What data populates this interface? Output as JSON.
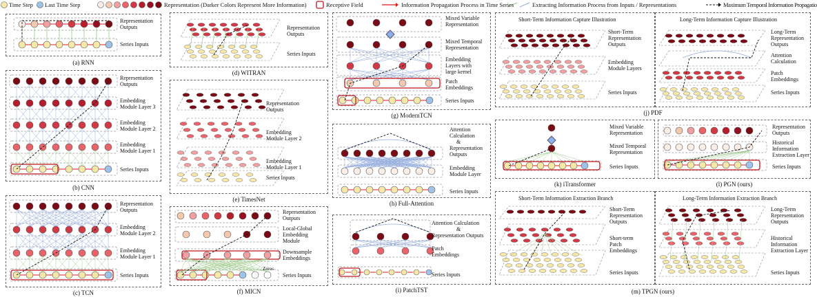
{
  "legend": {
    "time_step": "Time Step",
    "last_time_step": "Last Time Step",
    "representation": "Representation (Darker Colors Represent More Information)",
    "receptive_field": "Receptive Field",
    "info_propagation": "Information Propagation Process in Time Series",
    "extracting": "Extracting Information Process from Inputs / Representations",
    "max_path": "Maximum Temporal Information Propagation Path"
  },
  "colors": {
    "time_step": "#f7e7a8",
    "last_time_step": "#9fc3e8",
    "rep_light": "#f4c9b0",
    "rep_mid": "#e8646a",
    "rep_dark": "#7a0a14",
    "receptive": "#c0141c",
    "green": "#9cc98a",
    "blue": "#8fa9dd"
  },
  "panels": {
    "rnn": {
      "caption": "(a) RNN",
      "labels": [
        "Representation",
        "Outputs",
        "Series Inputs"
      ]
    },
    "cnn": {
      "caption": "(b) CNN",
      "labels": [
        "Representation",
        "Outputs",
        "Embedding",
        "Module Layer 3",
        "Embedding",
        "Module Layer 2",
        "Embedding",
        "Module Layer 1",
        "Series Inputs"
      ]
    },
    "tcn": {
      "caption": "(c) TCN",
      "labels": [
        "Representation",
        "Outputs",
        "Embedding",
        "Module Layer 2",
        "Embedding",
        "Module Layer 1",
        "Series Inputs"
      ]
    },
    "witran": {
      "caption": "(d) WITRAN",
      "labels": [
        "Representation",
        "Outputs",
        "Series Inputs"
      ]
    },
    "timesnet": {
      "caption": "(e) TimesNet",
      "labels": [
        "Representation",
        "Outputs",
        "Embedding",
        "Module Layer 2",
        "Embedding",
        "Module Layer 1",
        "Series Inputs"
      ]
    },
    "micn": {
      "caption": "(f) MICN",
      "labels": [
        "Representation",
        "Outputs",
        "Local-Global",
        "Embedding",
        "Module",
        "Downsample",
        "Embeddings",
        "Series Inputs"
      ],
      "zeros": "Zeros"
    },
    "moderntcn": {
      "caption": "(g) ModernTCN",
      "labels": [
        "Mixed Variable",
        "Representation",
        "Mixed Temporal",
        "Representation",
        "Embedding",
        "Layers with",
        "large kernel",
        "Patch",
        "Embeddings",
        "Series Inputs"
      ]
    },
    "fullatt": {
      "caption": "(h) Full-Attention",
      "labels": [
        "Attention",
        "Calculation",
        "&",
        "Representation",
        "Outputs",
        "Embedding",
        "Module Layer",
        "Series Inputs"
      ]
    },
    "patchtst": {
      "caption": "(i) PatchTST",
      "labels": [
        "Attention Calculation",
        "&",
        "Representation Outputs",
        "Patch",
        "Embeddings",
        "Series Inputs"
      ]
    },
    "pdf": {
      "caption": "(j) PDF",
      "left_title": "Short-Term Information Capture Illustration",
      "right_title": "Long-Term Information Capture Illustration",
      "left_labels": [
        "Short-Term",
        "Representation",
        "Outputs",
        "Embedding",
        "Module Layers",
        "Series Inputs"
      ],
      "right_labels": [
        "Long-Term",
        "Representation",
        "Outputs",
        "Attention",
        "Calculation",
        "Patch",
        "Embeddings",
        "Series Inputs"
      ]
    },
    "itransformer": {
      "caption": "(k) iTransformer",
      "labels": [
        "Mixed Variable",
        "Representation",
        "Mixed Temporal",
        "Representation",
        "Series Inputs"
      ]
    },
    "pgn": {
      "caption": "(l) PGN (ours)",
      "labels": [
        "Representation",
        "Outputs",
        "Historical",
        "Information",
        "Extraction Layer",
        "Series Inputs"
      ]
    },
    "tpgn": {
      "caption": "(m) TPGN (ours)",
      "left_title": "Short-Term Information Extraction Branch",
      "right_title": "Long-Term Information Extraction Branch",
      "left_labels": [
        "Short-Term",
        "Representation",
        "Outputs",
        "Short-term",
        "Patch",
        "Embeddings",
        "Series Inputs"
      ],
      "right_labels": [
        "Long-Term",
        "Representation",
        "Outputs",
        "Historical",
        "Information",
        "Extraction Layer",
        "Series Inputs"
      ]
    }
  }
}
